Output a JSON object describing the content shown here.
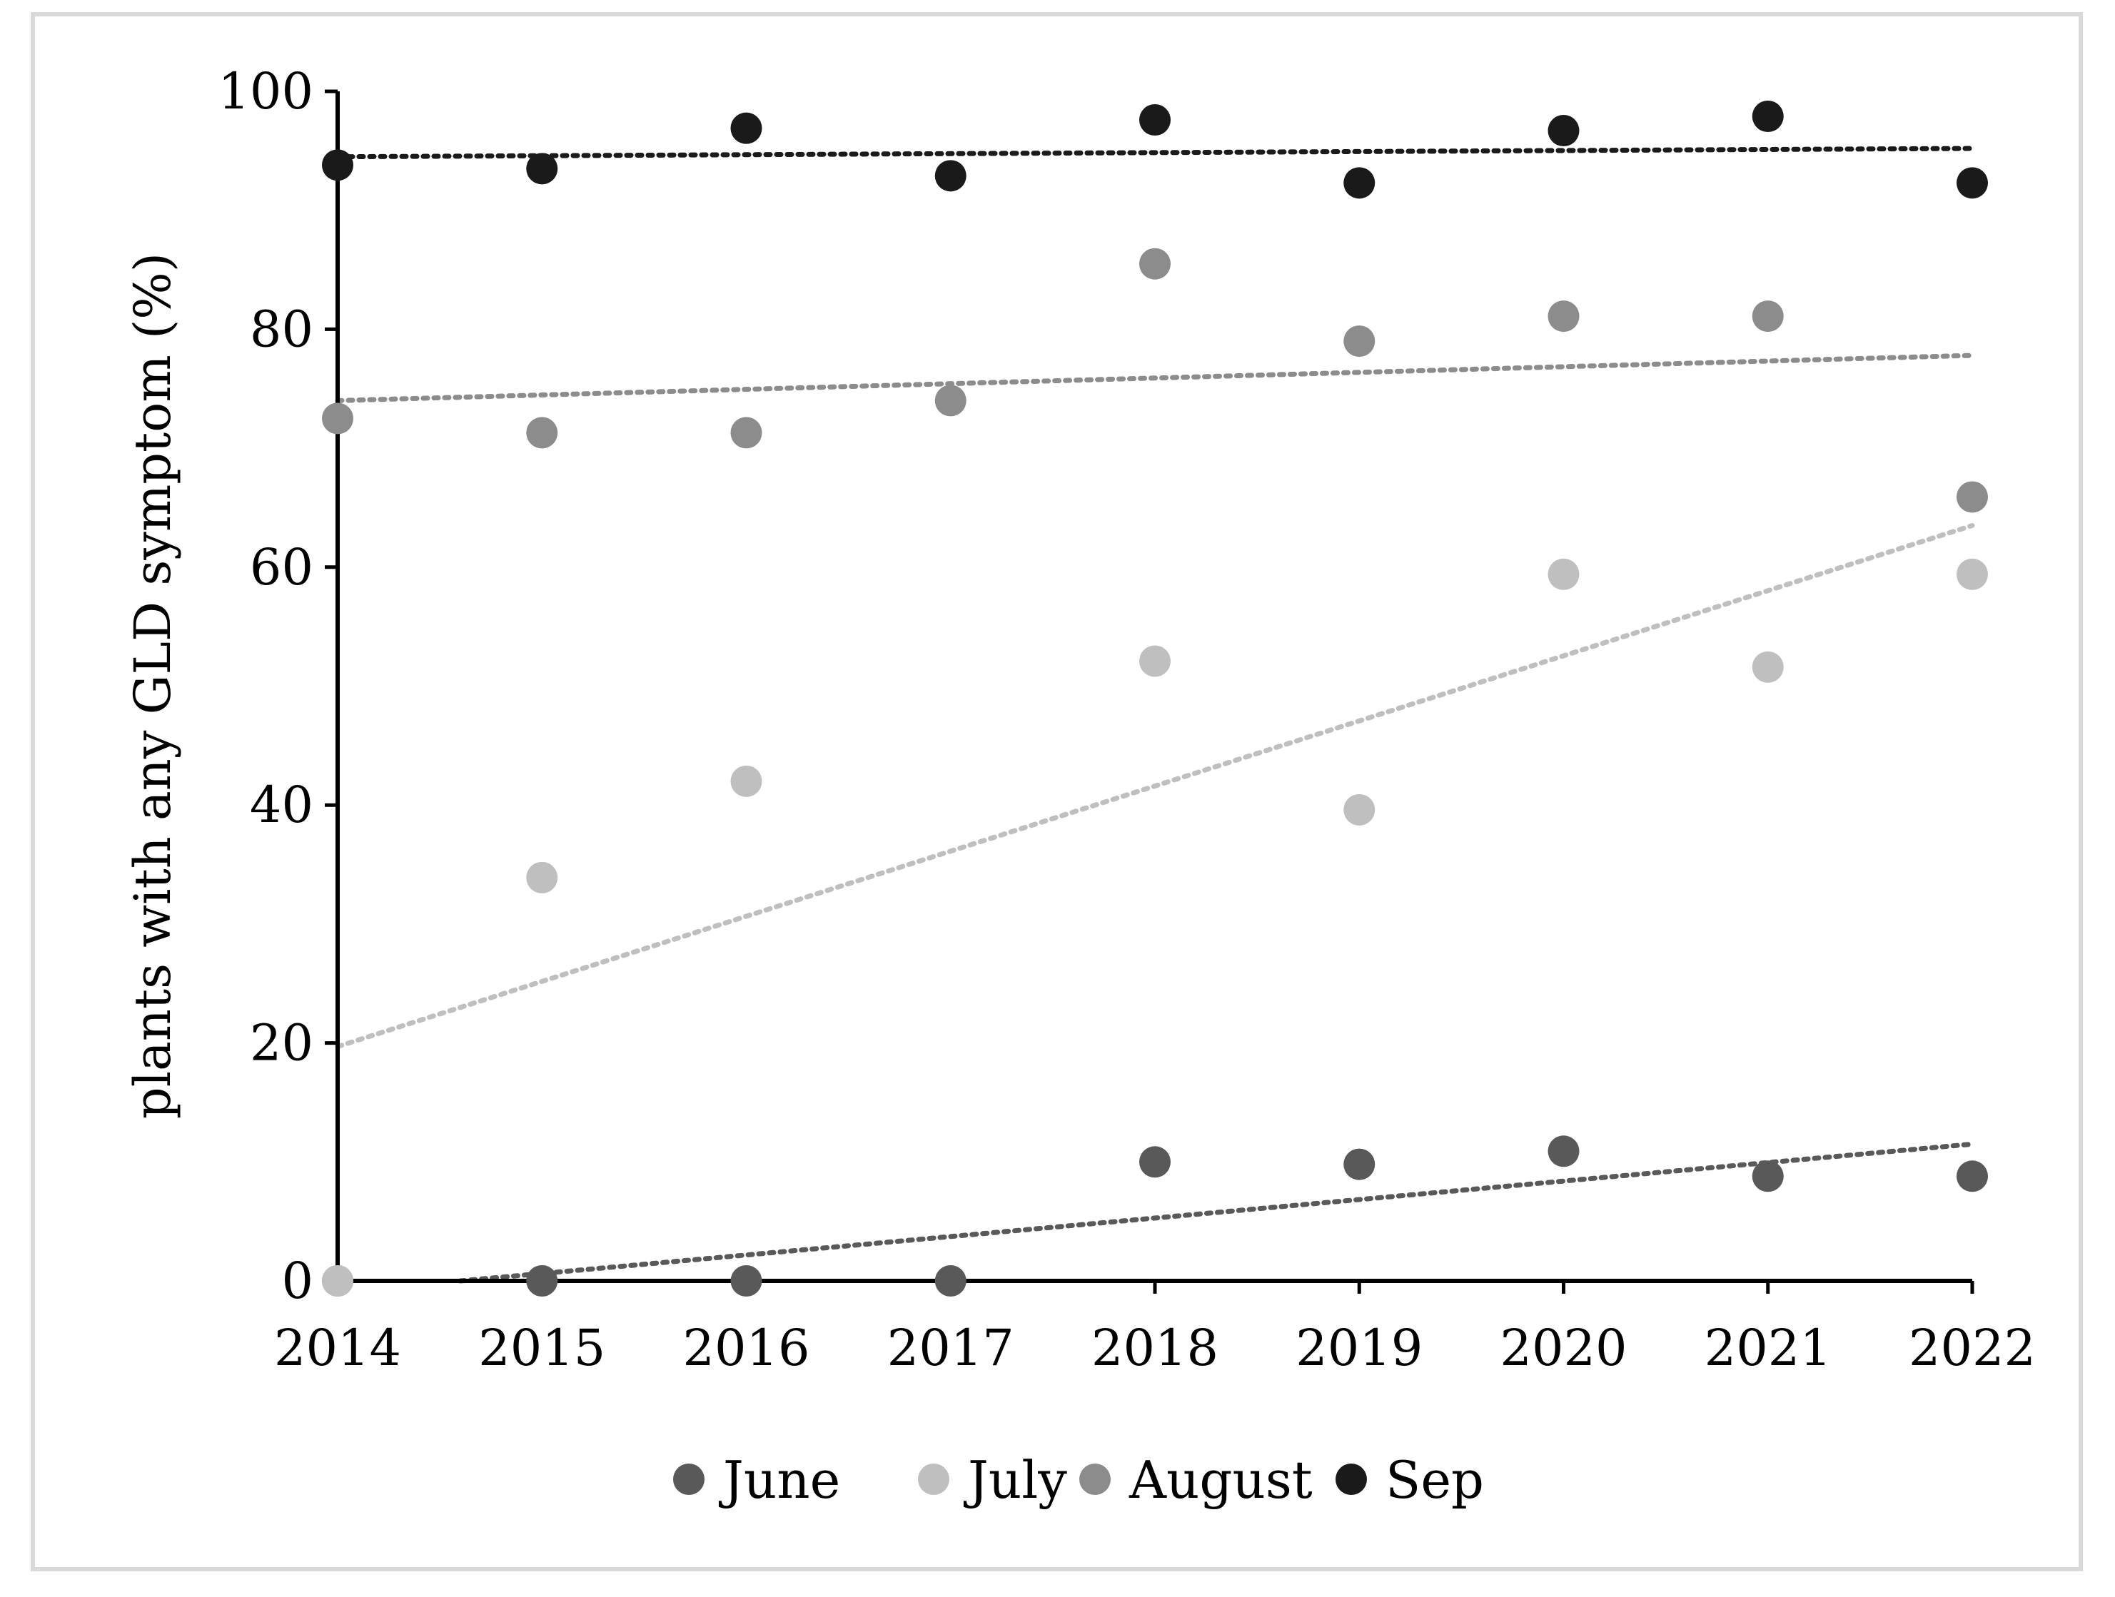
{
  "chart_data": {
    "type": "scatter",
    "title": "",
    "xlabel": "",
    "ylabel": "plants with any GLD symptom (%)",
    "x": [
      2014,
      2015,
      2016,
      2017,
      2018,
      2019,
      2020,
      2021,
      2022
    ],
    "x_tick_labels": [
      "2014",
      "2015",
      "2016",
      "2017",
      "2018",
      "2019",
      "2020",
      "2021",
      "2022"
    ],
    "ylim": [
      0,
      100
    ],
    "y_ticks": [
      0,
      20,
      40,
      60,
      80,
      100
    ],
    "y_tick_labels": [
      "0",
      "20",
      "40",
      "60",
      "80",
      "100"
    ],
    "grid": false,
    "legend_position": "bottom",
    "series": [
      {
        "name": "June",
        "color": "#595959",
        "values": [
          0,
          0,
          0,
          0,
          10,
          9.8,
          10.9,
          8.8,
          8.8
        ],
        "trendline": {
          "type": "linear",
          "from": [
            2014.6,
            0
          ],
          "to": [
            2022,
            11.5
          ]
        }
      },
      {
        "name": "July",
        "color": "#bfbfbf",
        "values": [
          0,
          33.9,
          42,
          null,
          52.1,
          39.6,
          59.4,
          51.6,
          59.4
        ],
        "trendline": {
          "type": "linear",
          "from": [
            2014,
            19.7
          ],
          "to": [
            2022,
            63.5
          ]
        }
      },
      {
        "name": "August",
        "color": "#8c8c8c",
        "values": [
          72.5,
          71.3,
          71.3,
          74,
          85.5,
          79,
          81.1,
          81.1,
          65.9
        ],
        "trendline": {
          "type": "linear",
          "from": [
            2014,
            74
          ],
          "to": [
            2022,
            77.8
          ]
        }
      },
      {
        "name": "Sep",
        "color": "#1a1a1a",
        "values": [
          93.8,
          93.5,
          96.9,
          92.9,
          97.6,
          92.3,
          96.7,
          97.9,
          92.3
        ],
        "trendline": {
          "type": "linear",
          "from": [
            2014,
            94.5
          ],
          "to": [
            2022,
            95.2
          ]
        }
      }
    ]
  }
}
